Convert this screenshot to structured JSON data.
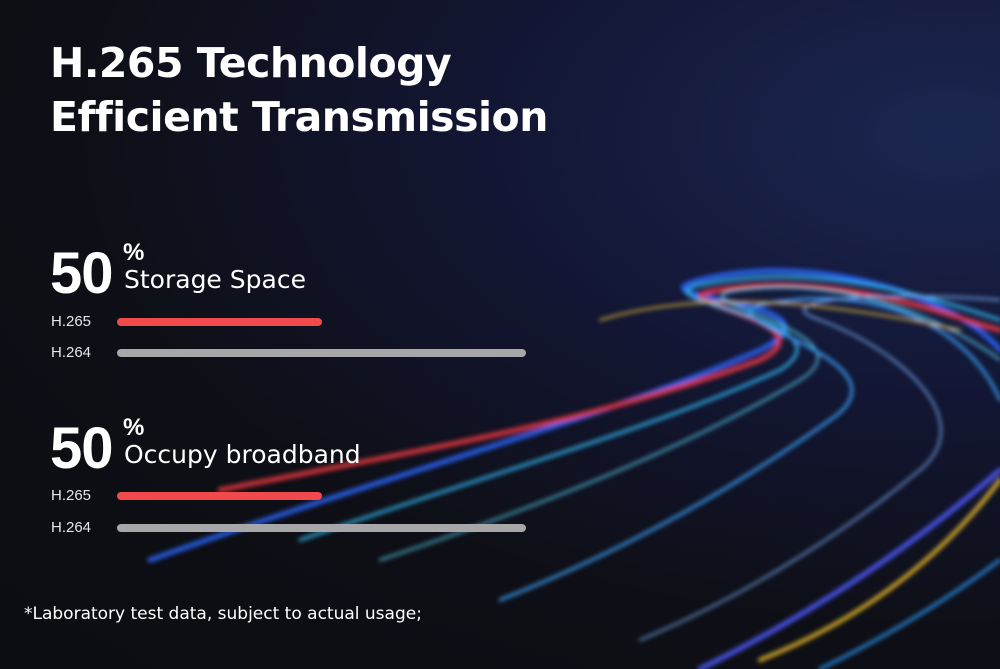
{
  "title": [
    "H.265 Technology",
    "Efficient Transmission"
  ],
  "chart_data": {
    "type": "bar",
    "orientation": "horizontal",
    "groups": [
      {
        "value_label": "50",
        "unit": "%",
        "caption": "Storage Space",
        "categories": [
          "H.265",
          "H.264"
        ],
        "values": [
          50,
          100
        ]
      },
      {
        "value_label": "50",
        "unit": "%",
        "caption": "Occupy broadband",
        "categories": [
          "H.265",
          "H.264"
        ],
        "values": [
          50,
          100
        ]
      }
    ],
    "colors": {
      "H.265": "#f04a4d",
      "H.264": "#a7a7a9"
    },
    "xlim": [
      0,
      100
    ],
    "grid": false
  },
  "footnote": "*Laboratory test data, subject to actual usage;"
}
